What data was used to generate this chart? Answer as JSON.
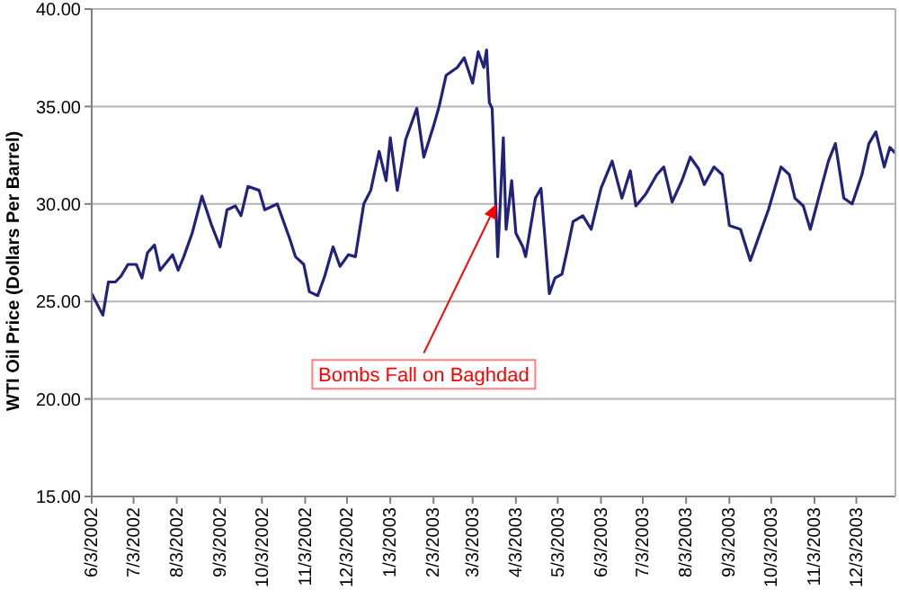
{
  "chart_data": {
    "type": "line",
    "ylabel": "WTI Oil Price (Dollars Per Barrel)",
    "x": [
      "2002-06-03",
      "2002-06-11",
      "2002-06-15",
      "2002-06-20",
      "2002-06-24",
      "2002-06-29",
      "2002-07-05",
      "2002-07-09",
      "2002-07-13",
      "2002-07-18",
      "2002-07-22",
      "2002-07-31",
      "2002-08-04",
      "2002-08-08",
      "2002-08-14",
      "2002-08-21",
      "2002-08-28",
      "2002-09-03",
      "2002-09-08",
      "2002-09-14",
      "2002-09-18",
      "2002-09-23",
      "2002-10-01",
      "2002-10-05",
      "2002-10-14",
      "2002-10-23",
      "2002-10-27",
      "2002-11-02",
      "2002-11-06",
      "2002-11-12",
      "2002-11-17",
      "2002-11-23",
      "2002-11-28",
      "2002-12-04",
      "2002-12-09",
      "2002-12-15",
      "2002-12-20",
      "2002-12-26",
      "2002-12-31",
      "2003-01-03",
      "2003-01-08",
      "2003-01-14",
      "2003-01-22",
      "2003-01-27",
      "2003-02-03",
      "2003-02-07",
      "2003-02-12",
      "2003-02-20",
      "2003-02-25",
      "2003-03-03",
      "2003-03-07",
      "2003-03-11",
      "2003-03-13",
      "2003-03-15",
      "2003-03-17",
      "2003-03-21",
      "2003-03-25",
      "2003-03-27",
      "2003-03-31",
      "2003-04-03",
      "2003-04-08",
      "2003-04-10",
      "2003-04-17",
      "2003-04-21",
      "2003-04-27",
      "2003-05-01",
      "2003-05-06",
      "2003-05-10",
      "2003-05-14",
      "2003-05-21",
      "2003-05-27",
      "2003-06-03",
      "2003-06-11",
      "2003-06-18",
      "2003-06-24",
      "2003-06-28",
      "2003-07-05",
      "2003-07-13",
      "2003-07-18",
      "2003-07-24",
      "2003-07-31",
      "2003-08-06",
      "2003-08-12",
      "2003-08-16",
      "2003-08-23",
      "2003-08-29",
      "2003-09-03",
      "2003-09-11",
      "2003-09-18",
      "2003-09-24",
      "2003-10-01",
      "2003-10-10",
      "2003-10-16",
      "2003-10-20",
      "2003-10-26",
      "2003-10-31",
      "2003-11-07",
      "2003-11-13",
      "2003-11-18",
      "2003-11-24",
      "2003-11-30",
      "2003-12-07",
      "2003-12-12",
      "2003-12-17",
      "2003-12-23",
      "2003-12-27",
      "2003-12-31"
    ],
    "series": [
      {
        "color": "#21237a",
        "values": [
          25.4,
          24.3,
          26.0,
          26.0,
          26.3,
          26.9,
          26.9,
          26.2,
          27.5,
          27.9,
          26.6,
          27.4,
          26.6,
          27.3,
          28.5,
          30.4,
          28.9,
          27.8,
          29.7,
          29.9,
          29.4,
          30.9,
          30.7,
          29.7,
          30.0,
          28.2,
          27.3,
          26.9,
          25.5,
          25.3,
          26.3,
          27.8,
          26.8,
          27.4,
          27.3,
          30.0,
          30.7,
          32.7,
          31.2,
          33.4,
          30.7,
          33.3,
          34.9,
          32.4,
          34.0,
          35.0,
          36.6,
          37.0,
          37.5,
          36.2,
          37.8,
          37.0,
          37.9,
          35.2,
          34.9,
          27.3,
          33.4,
          28.7,
          31.2,
          28.5,
          27.8,
          27.3,
          30.3,
          30.8,
          25.4,
          26.2,
          26.4,
          27.7,
          29.1,
          29.4,
          28.7,
          30.8,
          32.2,
          30.3,
          31.7,
          29.9,
          30.5,
          31.5,
          31.9,
          30.1,
          31.2,
          32.4,
          31.8,
          31.0,
          31.9,
          31.5,
          28.9,
          28.7,
          27.1,
          28.3,
          29.7,
          31.9,
          31.5,
          30.3,
          29.9,
          28.7,
          30.6,
          32.2,
          33.1,
          30.3,
          30.0,
          31.5,
          33.1,
          33.7,
          31.9,
          32.9,
          32.6
        ]
      }
    ],
    "xlim": [
      "2002-06-03",
      "2003-12-31"
    ],
    "xticks": [
      {
        "value": "2002-06-03",
        "label": "6/3/2002"
      },
      {
        "value": "2002-07-03",
        "label": "7/3/2002"
      },
      {
        "value": "2002-08-03",
        "label": "8/3/2002"
      },
      {
        "value": "2002-09-03",
        "label": "9/3/2002"
      },
      {
        "value": "2002-10-03",
        "label": "10/3/2002"
      },
      {
        "value": "2002-11-03",
        "label": "11/3/2002"
      },
      {
        "value": "2002-12-03",
        "label": "12/3/2002"
      },
      {
        "value": "2003-01-03",
        "label": "1/3/2003"
      },
      {
        "value": "2003-02-03",
        "label": "2/3/2003"
      },
      {
        "value": "2003-03-03",
        "label": "3/3/2003"
      },
      {
        "value": "2003-04-03",
        "label": "4/3/2003"
      },
      {
        "value": "2003-05-03",
        "label": "5/3/2003"
      },
      {
        "value": "2003-06-03",
        "label": "6/3/2003"
      },
      {
        "value": "2003-07-03",
        "label": "7/3/2003"
      },
      {
        "value": "2003-08-03",
        "label": "8/3/2003"
      },
      {
        "value": "2003-09-03",
        "label": "9/3/2003"
      },
      {
        "value": "2003-10-03",
        "label": "10/3/2003"
      },
      {
        "value": "2003-11-03",
        "label": "11/3/2003"
      },
      {
        "value": "2003-12-03",
        "label": "12/3/2003"
      }
    ],
    "ylim": [
      15,
      40
    ],
    "yticks": [
      {
        "value": 15,
        "label": "15.00"
      },
      {
        "value": 20,
        "label": "20.00"
      },
      {
        "value": 25,
        "label": "25.00"
      },
      {
        "value": 30,
        "label": "30.00"
      },
      {
        "value": 35,
        "label": "35.00"
      },
      {
        "value": 40,
        "label": "40.00"
      }
    ],
    "grid": "y",
    "marker": "none",
    "line_style": "solid",
    "legend": false,
    "annotations": [
      {
        "text": "Bombs Fall on Baghdad",
        "x": "2003-03-20",
        "y": 30
      }
    ]
  }
}
